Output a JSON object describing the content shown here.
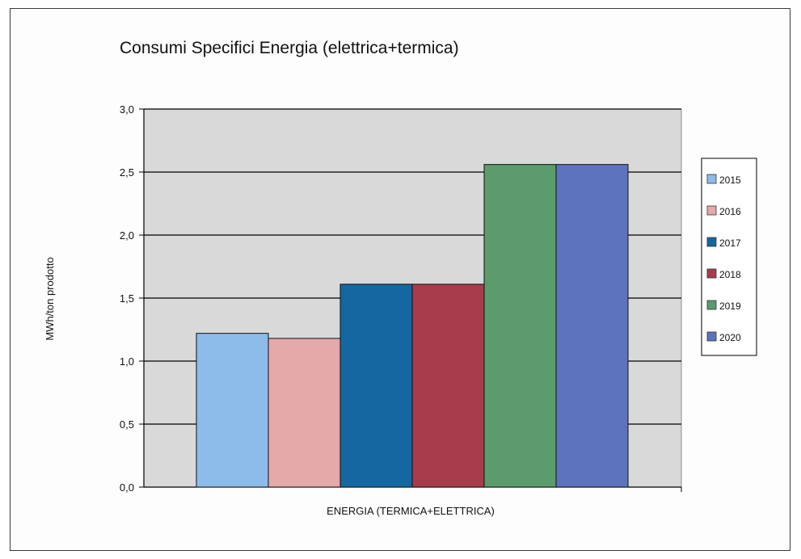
{
  "chart_data": {
    "type": "bar",
    "title": "Consumi Specifici Energia (elettrica+termica)",
    "xlabel": "ENERGIA (TERMICA+ELETTRICA)",
    "ylabel": "MWh/ton prodotto",
    "ylim": [
      0,
      3.0
    ],
    "y_ticks": [
      "0,0",
      "0,5",
      "1,0",
      "1,5",
      "2,0",
      "2,5",
      "3,0"
    ],
    "grid": true,
    "legend_position": "right",
    "categories": [
      "ENERGIA (TERMICA+ELETTRICA)"
    ],
    "series": [
      {
        "name": "2015",
        "values": [
          1.22
        ],
        "color": "#8dbbea"
      },
      {
        "name": "2016",
        "values": [
          1.18
        ],
        "color": "#e4a9a8"
      },
      {
        "name": "2017",
        "values": [
          1.61
        ],
        "color": "#1467a0"
      },
      {
        "name": "2018",
        "values": [
          1.61
        ],
        "color": "#a63c4c"
      },
      {
        "name": "2019",
        "values": [
          2.56
        ],
        "color": "#5b9b6c"
      },
      {
        "name": "2020",
        "values": [
          2.56
        ],
        "color": "#5d73bd"
      }
    ],
    "plot_background": "#d9d9d9"
  }
}
